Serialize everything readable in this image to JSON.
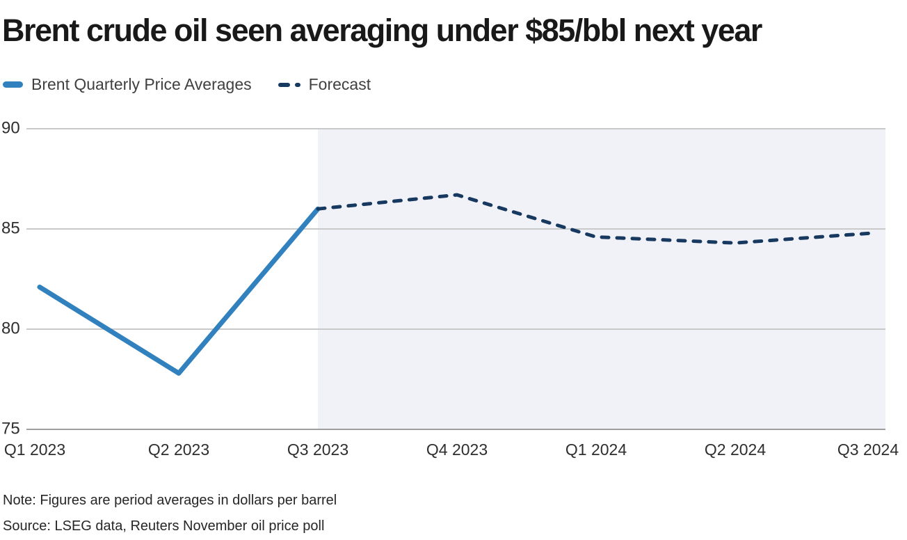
{
  "colors": {
    "actual_line": "#3181bf",
    "forecast_line": "#17395f",
    "forecast_shade": "#f1f1f8",
    "gridline": "#c9c9c9",
    "axis_line": "#9e9e9e",
    "title_text": "#191919",
    "axis_text": "#2e2e2e",
    "legend_text": "#404040",
    "note_text": "#262626"
  },
  "notes": {
    "note": "Note: Figures are period averages in dollars per barrel",
    "source": "Source: LSEG data, Reuters November oil price poll"
  },
  "chart_data": {
    "type": "line",
    "title": "Brent crude oil seen averaging under $85/bbl next year",
    "categories": [
      "Q1 2023",
      "Q2 2023",
      "Q3 2023",
      "Q4 2023",
      "Q1 2024",
      "Q2 2024",
      "Q3 2024"
    ],
    "series": [
      {
        "name": "Brent Quarterly Price Averages",
        "style": "solid",
        "color": "#3181bf",
        "values": [
          82.1,
          77.8,
          86.0,
          null,
          null,
          null,
          null
        ]
      },
      {
        "name": "Forecast",
        "style": "dashed",
        "color": "#17395f",
        "values": [
          null,
          null,
          86.0,
          86.7,
          84.6,
          84.3,
          84.8
        ]
      }
    ],
    "xlabel": "",
    "ylabel": "",
    "ylim": [
      75,
      90
    ],
    "yticks": [
      75,
      80,
      85,
      90
    ],
    "grid": true,
    "legend_position": "top-left",
    "forecast_region": {
      "from_category": "Q3 2023",
      "to_end": true,
      "color": "#f1f1f8"
    }
  }
}
